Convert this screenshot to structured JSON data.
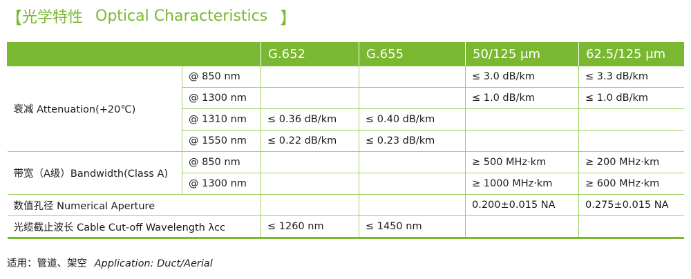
{
  "title": {
    "open_bracket": "【",
    "zh": "光学特性",
    "en": "Optical Characteristics",
    "close_bracket": "】"
  },
  "table": {
    "columns": [
      "G.652",
      "G.655",
      "50/125 μm",
      "62.5/125 μm"
    ],
    "groups": {
      "attenuation": "衰减  Attenuation(+20℃)",
      "bandwidth": "带宽（A级）Bandwidth(Class A)",
      "numerical_aperture": "数值孔径  Numerical Aperture",
      "cutoff": "光缆截止波长  Cable Cut-off Wavelength λcc"
    },
    "attenuation_rows": [
      {
        "wavelength": "@ 850 nm",
        "g652": "",
        "g655": "",
        "mm50": "≤ 3.0 dB/km",
        "mm625": "≤ 3.3 dB/km"
      },
      {
        "wavelength": "@ 1300 nm",
        "g652": "",
        "g655": "",
        "mm50": "≤ 1.0 dB/km",
        "mm625": "≤ 1.0 dB/km"
      },
      {
        "wavelength": "@ 1310 nm",
        "g652": "≤ 0.36 dB/km",
        "g655": "≤ 0.40 dB/km",
        "mm50": "",
        "mm625": ""
      },
      {
        "wavelength": "@ 1550 nm",
        "g652": "≤ 0.22 dB/km",
        "g655": "≤ 0.23 dB/km",
        "mm50": "",
        "mm625": ""
      }
    ],
    "bandwidth_rows": [
      {
        "wavelength": "@ 850 nm",
        "g652": "",
        "g655": "",
        "mm50": "≥ 500 MHz·km",
        "mm625": "≥ 200 MHz·km"
      },
      {
        "wavelength": "@ 1300 nm",
        "g652": "",
        "g655": "",
        "mm50": "≥ 1000 MHz·km",
        "mm625": "≥ 600 MHz·km"
      }
    ],
    "numerical_aperture": {
      "g652": "",
      "g655": "",
      "mm50": "0.200±0.015 NA",
      "mm625": "0.275±0.015 NA"
    },
    "cutoff": {
      "g652": "≤ 1260 nm",
      "g655": "≤ 1450 nm",
      "mm50": "",
      "mm625": ""
    }
  },
  "footer": {
    "zh": "适用：管道、架空",
    "en": "Application: Duct/Aerial"
  },
  "colors": {
    "accent": "#7ab832",
    "border": "#9dd05c",
    "text": "#1a1a1a"
  }
}
